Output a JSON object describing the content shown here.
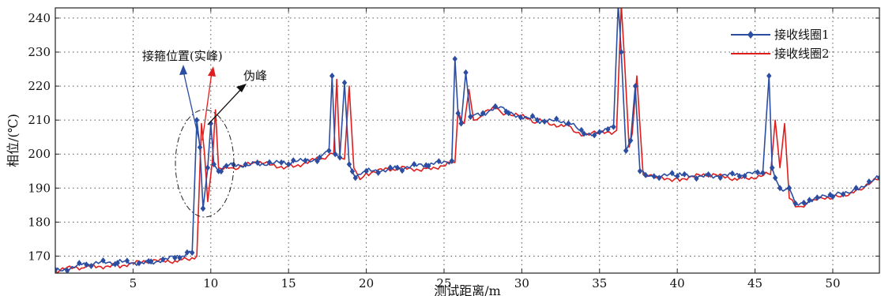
{
  "chart_data": {
    "type": "line",
    "xlabel": "测试距离/m",
    "ylabel": "相位/(℃)",
    "xlim": [
      0,
      53
    ],
    "ylim": [
      165,
      243
    ],
    "x_ticks": [
      5,
      10,
      15,
      20,
      25,
      30,
      35,
      40,
      45,
      50
    ],
    "y_ticks": [
      170,
      180,
      190,
      200,
      210,
      220,
      230,
      240
    ],
    "grid": true,
    "legend_position": "top-right",
    "series": [
      {
        "name": "接收线圈1",
        "color": "#2b4ea2",
        "marker": "diamond",
        "x": [
          0,
          2,
          4,
          6,
          8,
          8.8,
          9.1,
          9.3,
          9.5,
          9.8,
          10.0,
          10.2,
          10.5,
          11,
          13,
          15,
          17,
          17.6,
          17.8,
          18.0,
          18.3,
          18.6,
          18.9,
          19.3,
          20,
          22,
          24,
          25.5,
          25.7,
          25.9,
          26.1,
          26.4,
          26.7,
          27.5,
          28.3,
          29,
          31,
          33,
          34,
          35,
          35.9,
          36.2,
          36.4,
          36.7,
          37.0,
          37.3,
          37.6,
          38.5,
          40,
          42,
          44,
          45.5,
          45.9,
          46.1,
          46.3,
          46.6,
          47.2,
          47.6,
          48.5,
          50,
          51.5,
          53
        ],
        "y": [
          166,
          167.5,
          168,
          168.5,
          169.5,
          171,
          210,
          202,
          184,
          196,
          209,
          197,
          195,
          196.5,
          197.5,
          197,
          199,
          201,
          223,
          200,
          199,
          221,
          197,
          193,
          195,
          196,
          196.5,
          198,
          228,
          212,
          209,
          224,
          211,
          212,
          214,
          212.5,
          210,
          209,
          206,
          206.5,
          208,
          244,
          230,
          201,
          204,
          220,
          195,
          193.5,
          193.5,
          194,
          193.5,
          194.5,
          223,
          196,
          193,
          190,
          190,
          185.5,
          186.5,
          187.5,
          190,
          193
        ]
      },
      {
        "name": "接收线圈2",
        "color": "#e01e1e",
        "marker": "none",
        "x": [
          0,
          2,
          4,
          6,
          8,
          9.1,
          9.4,
          9.6,
          9.8,
          10.1,
          10.3,
          10.5,
          10.8,
          11.3,
          13,
          15,
          17,
          17.9,
          18.1,
          18.3,
          18.6,
          18.9,
          19.2,
          19.6,
          20,
          22,
          24,
          25.7,
          25.9,
          26.1,
          26.3,
          26.6,
          26.9,
          27.5,
          28.3,
          29,
          31,
          33,
          34,
          35,
          36.1,
          36.4,
          36.6,
          36.9,
          37.1,
          37.4,
          37.8,
          38.5,
          40,
          42,
          44,
          46,
          46.3,
          46.6,
          46.9,
          47.2,
          47.6,
          48.5,
          50,
          51.5,
          53
        ],
        "y": [
          165.5,
          167,
          167.5,
          168,
          169,
          170,
          209,
          200,
          186,
          198,
          213,
          196,
          195.5,
          196,
          197,
          196.5,
          198.5,
          200,
          222,
          199,
          198.5,
          220,
          196,
          192.5,
          194.5,
          195.5,
          196,
          197.5,
          213,
          210,
          209,
          219,
          210,
          211.5,
          213.5,
          212,
          209.5,
          208.5,
          205.5,
          206,
          207,
          244,
          228,
          202,
          206,
          223,
          194,
          193,
          193,
          193.5,
          193,
          194,
          210,
          196,
          209,
          187,
          184.5,
          186,
          187,
          189.5,
          192.5
        ]
      }
    ],
    "annotations": [
      {
        "text": "接箍位置(实峰)"
      },
      {
        "text": "伪峰"
      }
    ]
  }
}
